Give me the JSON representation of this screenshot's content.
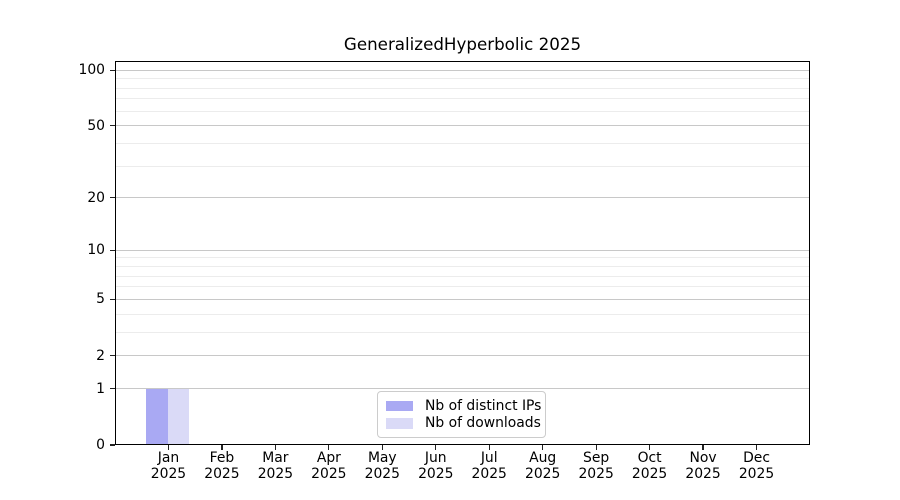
{
  "chart_data": {
    "type": "bar",
    "title": "GeneralizedHyperbolic 2025",
    "x_categories": [
      {
        "month": "Jan",
        "year": "2025"
      },
      {
        "month": "Feb",
        "year": "2025"
      },
      {
        "month": "Mar",
        "year": "2025"
      },
      {
        "month": "Apr",
        "year": "2025"
      },
      {
        "month": "May",
        "year": "2025"
      },
      {
        "month": "Jun",
        "year": "2025"
      },
      {
        "month": "Jul",
        "year": "2025"
      },
      {
        "month": "Aug",
        "year": "2025"
      },
      {
        "month": "Sep",
        "year": "2025"
      },
      {
        "month": "Oct",
        "year": "2025"
      },
      {
        "month": "Nov",
        "year": "2025"
      },
      {
        "month": "Dec",
        "year": "2025"
      }
    ],
    "series": [
      {
        "name": "Nb of distinct IPs",
        "color": "#a9a9f3",
        "values": [
          1,
          0,
          0,
          0,
          0,
          0,
          0,
          0,
          0,
          0,
          0,
          0
        ]
      },
      {
        "name": "Nb of downloads",
        "color": "#dadaf7",
        "values": [
          1,
          0,
          0,
          0,
          0,
          0,
          0,
          0,
          0,
          0,
          0,
          0
        ]
      }
    ],
    "yscale": "log1p",
    "ylim": [
      0,
      112
    ],
    "yticks_major": [
      0,
      1,
      2,
      5,
      10,
      20,
      50,
      100
    ],
    "yticks_minor": [
      3,
      4,
      6,
      7,
      8,
      9,
      30,
      40,
      60,
      70,
      80,
      90
    ],
    "grid": true,
    "legend_position": "lower center",
    "colors": {
      "background": "#ffffff",
      "spine": "#000000",
      "grid_major": "#c8c8c8",
      "grid_minor": "#ececec",
      "tick_color": "#222222",
      "text": "#000000",
      "legend_border": "#cccccc",
      "legend_bg": "rgba(255,255,255,0.8)"
    }
  }
}
